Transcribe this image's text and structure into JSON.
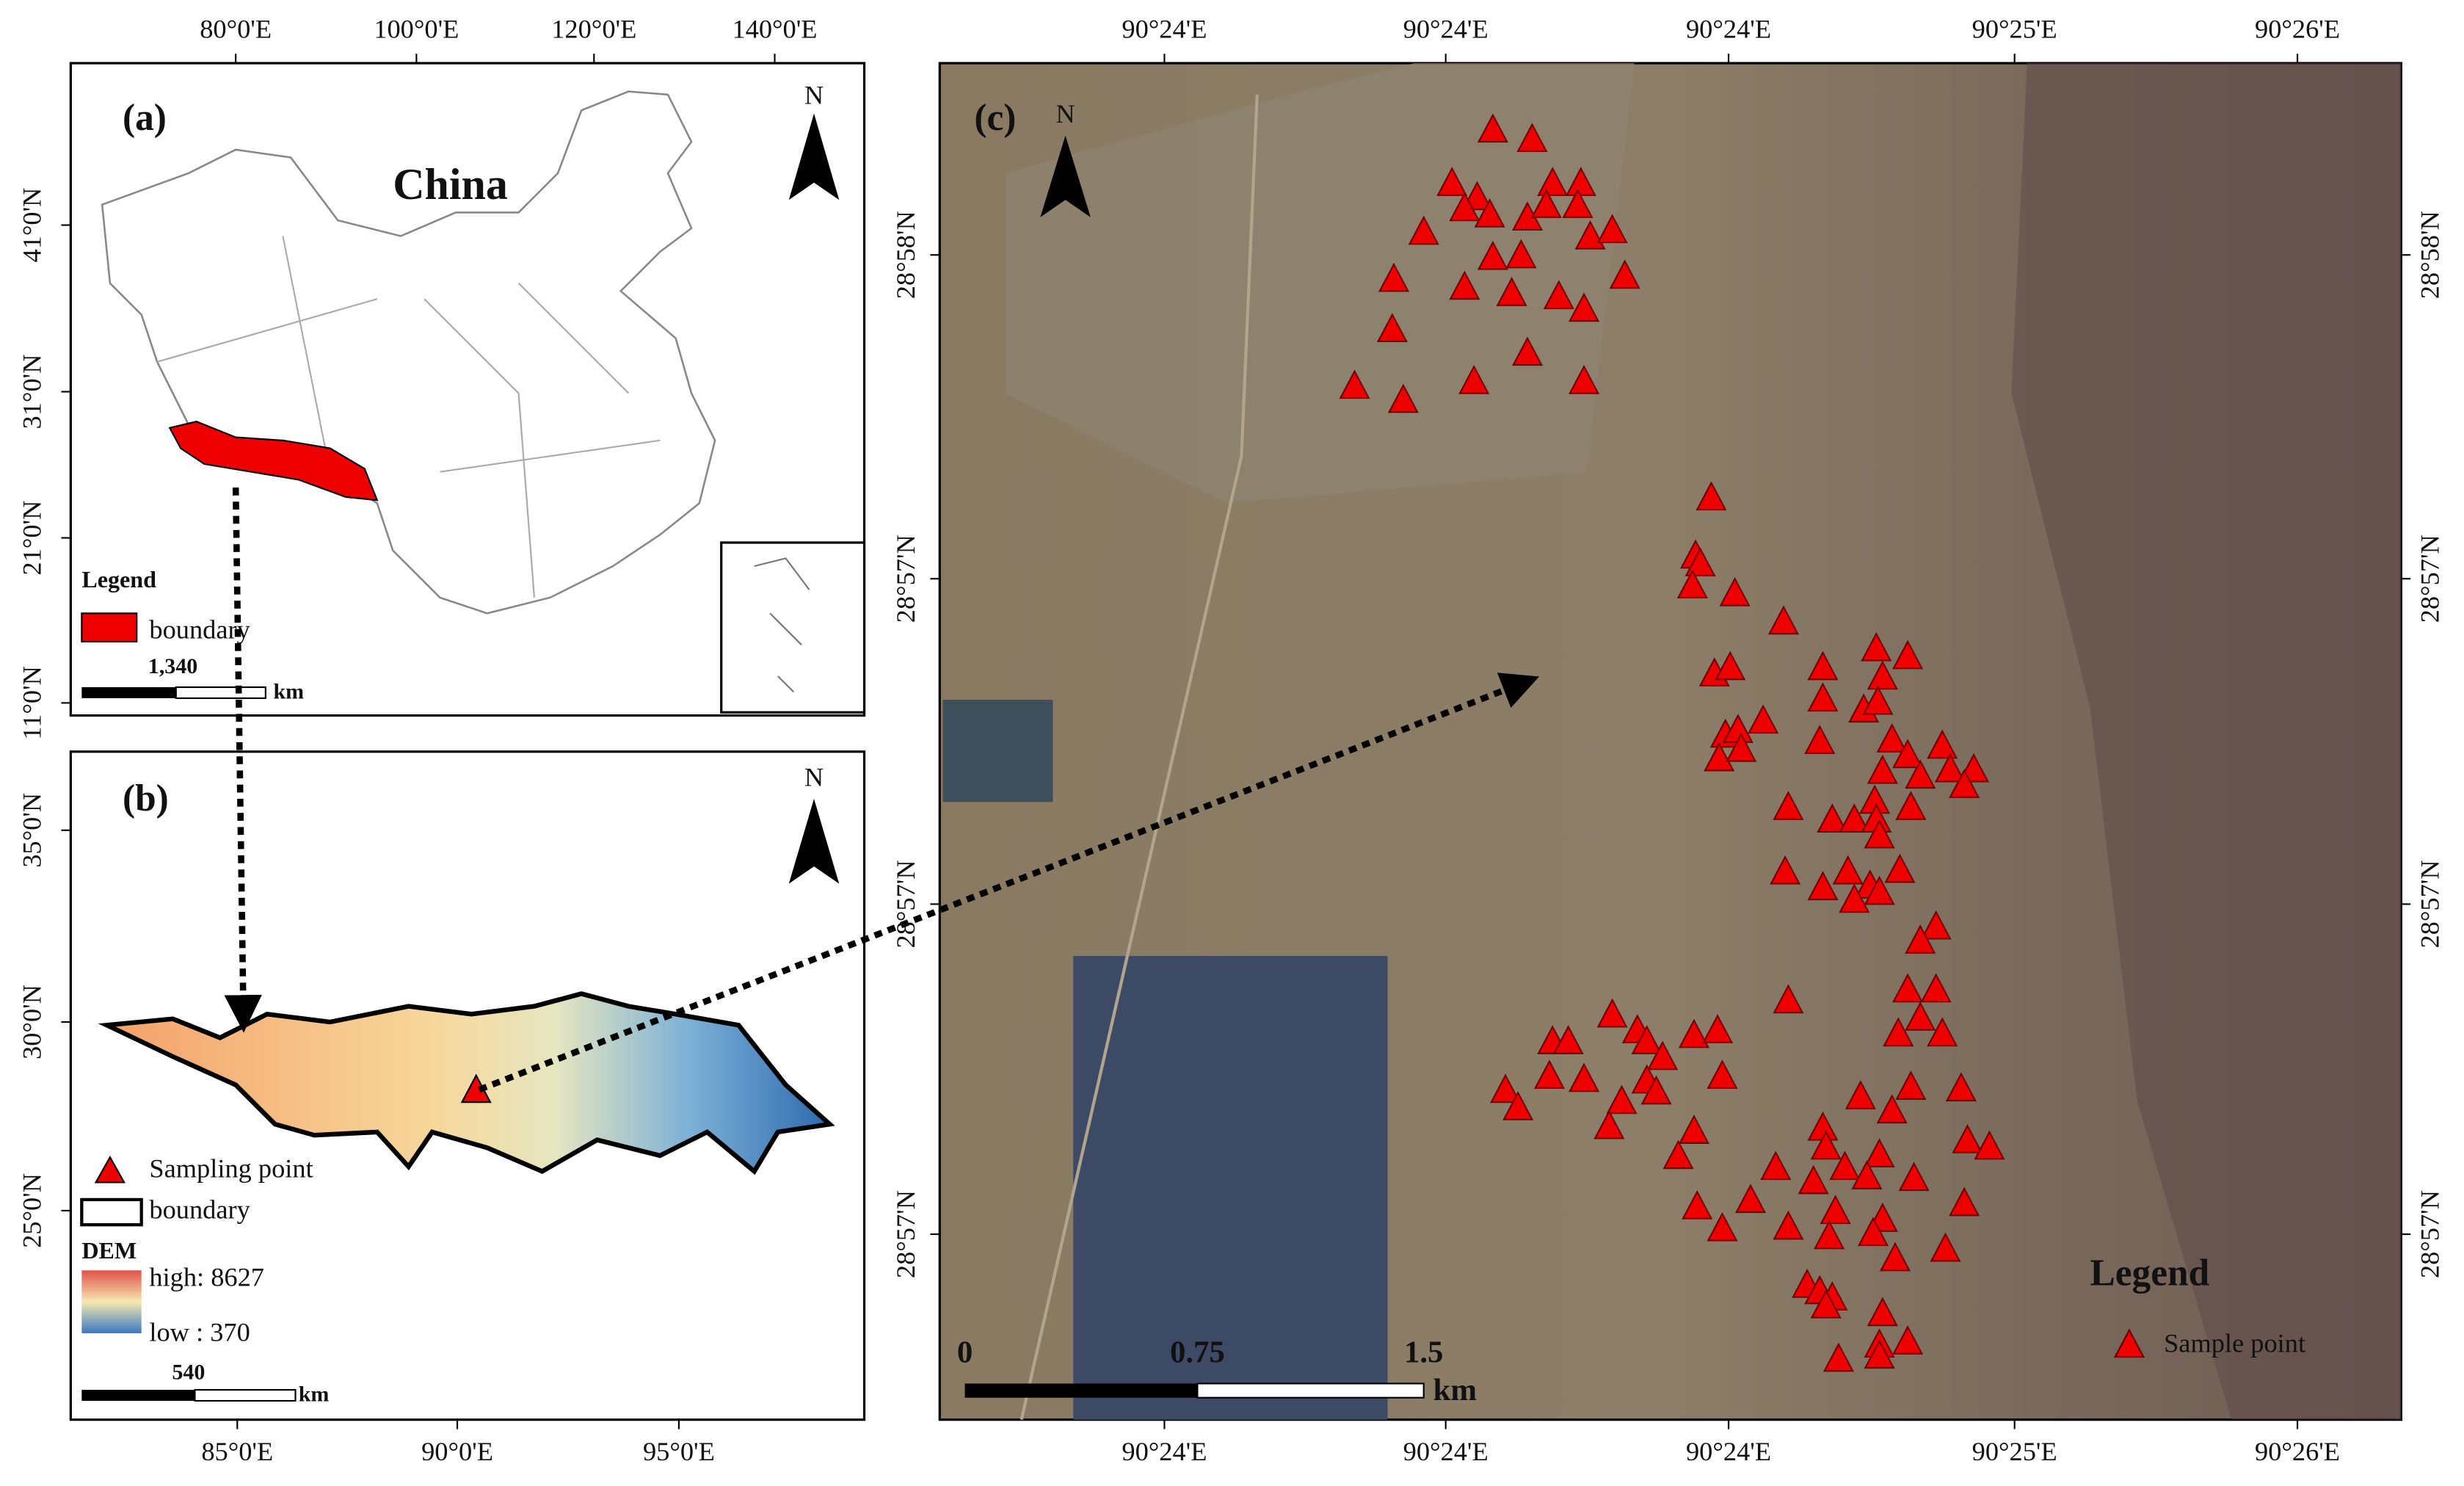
{
  "panel_a": {
    "label": "(a)",
    "title": "China",
    "north": "N",
    "top_ticks": [
      "80°0'E",
      "100°0'E",
      "120°0'E",
      "140°0'E"
    ],
    "left_ticks": [
      "41°0'N",
      "31°0'N",
      "21°0'N",
      "11°0'N"
    ],
    "legend": {
      "title": "Legend",
      "boundary": "boundary"
    },
    "scale": {
      "distance": "1,340",
      "unit": "km"
    }
  },
  "panel_b": {
    "label": "(b)",
    "north": "N",
    "bottom_ticks": [
      "85°0'E",
      "90°0'E",
      "95°0'E"
    ],
    "left_ticks": [
      "35°0'N",
      "30°0'N",
      "25°0'N"
    ],
    "legend": {
      "sampling_point": "Sampling point",
      "boundary": "boundary",
      "dem": "DEM",
      "high": "high: 8627",
      "low": "low : 370"
    },
    "scale": {
      "distance": "540",
      "unit": "km"
    }
  },
  "panel_c": {
    "label": "(c)",
    "north": "N",
    "top_ticks": [
      "90°24'E",
      "90°24'E",
      "90°24'E",
      "90°25'E",
      "90°26'E"
    ],
    "bottom_ticks": [
      "90°24'E",
      "90°24'E",
      "90°24'E",
      "90°25'E",
      "90°26'E"
    ],
    "left_ticks": [
      "28°58'N",
      "28°57'N",
      "28°57'N",
      "28°57'N"
    ],
    "right_ticks": [
      "28°58'N",
      "28°57'N",
      "28°57'N",
      "28°57'N"
    ],
    "legend": {
      "title": "Legend",
      "sample_point": "Sample point"
    },
    "scale": {
      "ticks": [
        "0",
        "0.75",
        "1.5"
      ],
      "unit": "km"
    }
  }
}
